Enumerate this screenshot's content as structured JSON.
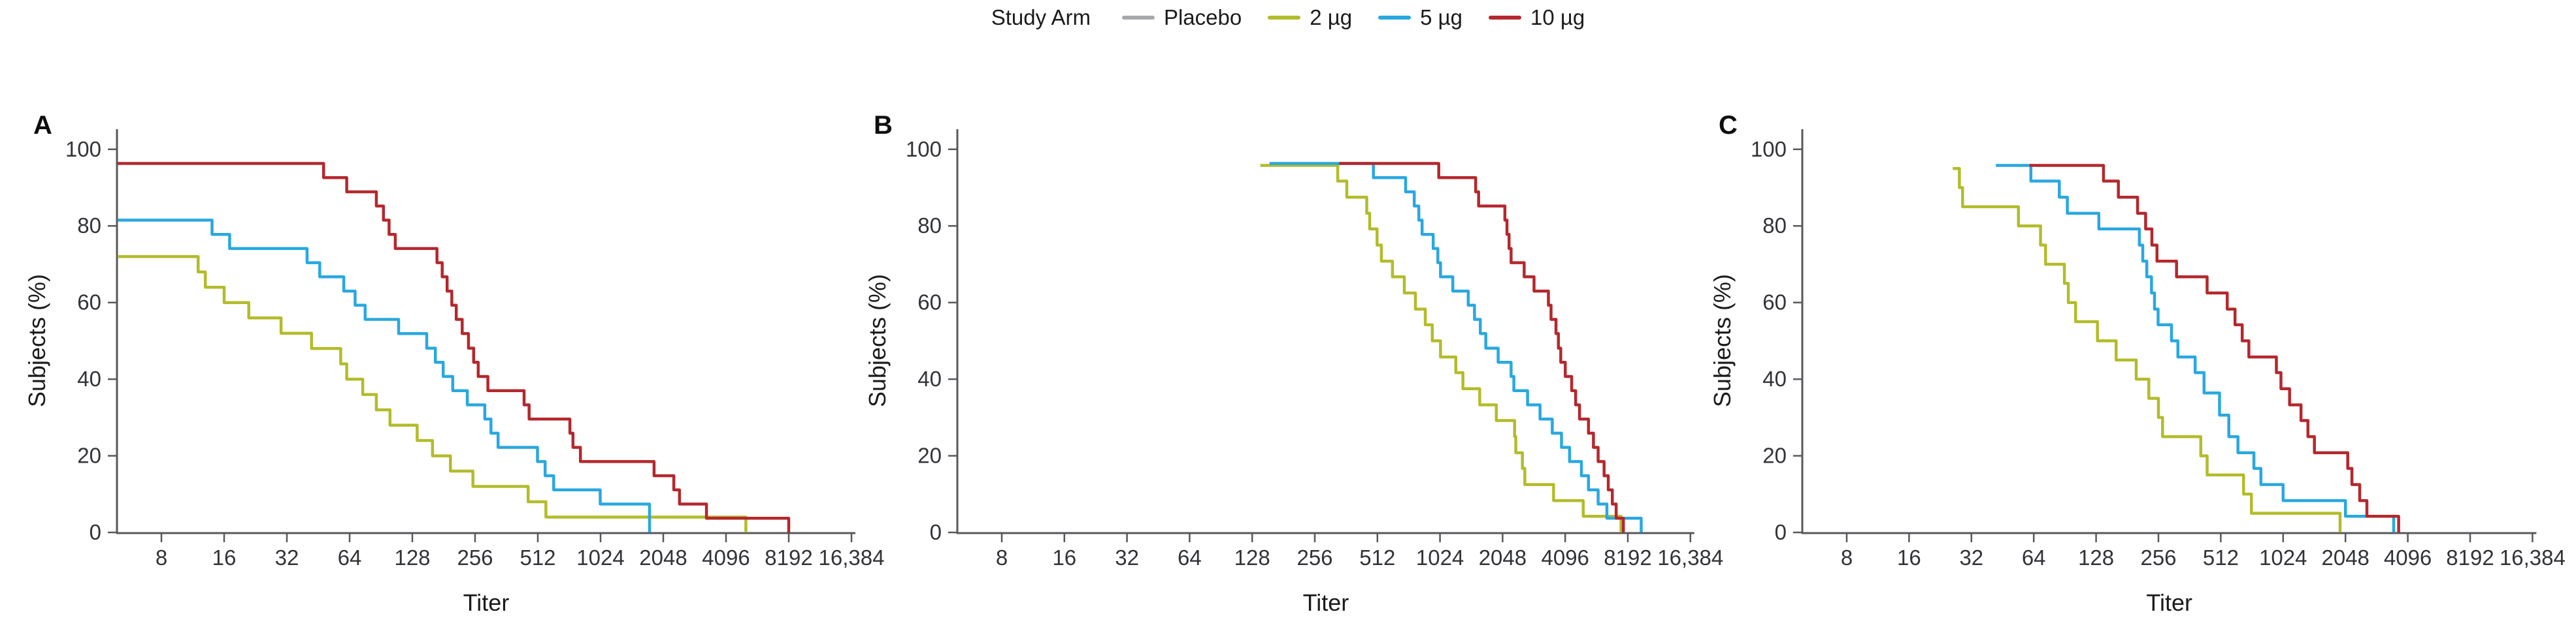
{
  "legend": {
    "title": "Study Arm",
    "items": [
      {
        "label": "Placebo",
        "color": "#a6a9ac"
      },
      {
        "label": "2 µg",
        "color": "#b3bc2a"
      },
      {
        "label": "5 µg",
        "color": "#29a8e0"
      },
      {
        "label": "10 µg",
        "color": "#b4282d"
      }
    ]
  },
  "axes": {
    "x_label": "Titer",
    "y_label": "Subjects (%)",
    "x_scale": "log2",
    "x_tick_labels": [
      "8",
      "16",
      "32",
      "64",
      "128",
      "256",
      "512",
      "1024",
      "2048",
      "4096",
      "8192",
      "16,384"
    ],
    "x_tick_values": [
      8,
      16,
      32,
      64,
      128,
      256,
      512,
      1024,
      2048,
      4096,
      8192,
      16384
    ],
    "y_tick_values": [
      100,
      80,
      60,
      40,
      20,
      0
    ],
    "ylim": [
      0,
      100
    ],
    "grid": false
  },
  "chart_data": [
    {
      "panel": "A",
      "type": "line",
      "style": "step-after",
      "x_scale": "log2",
      "xlabel": "Titer",
      "ylabel": "Subjects (%)",
      "ylim": [
        0,
        100
      ],
      "xlim": [
        5,
        16384
      ],
      "series": [
        {
          "name": "2 µg",
          "color": "#b3bc2a",
          "points": [
            [
              5,
              72
            ],
            [
              12,
              68
            ],
            [
              13,
              64
            ],
            [
              16,
              60
            ],
            [
              21,
              56
            ],
            [
              30,
              52
            ],
            [
              42,
              48
            ],
            [
              58,
              44
            ],
            [
              62,
              40
            ],
            [
              74,
              36
            ],
            [
              86,
              32
            ],
            [
              100,
              28
            ],
            [
              135,
              24
            ],
            [
              160,
              20
            ],
            [
              195,
              16
            ],
            [
              250,
              12
            ],
            [
              460,
              8
            ],
            [
              560,
              4
            ],
            [
              5100,
              0
            ]
          ]
        },
        {
          "name": "5 µg",
          "color": "#29a8e0",
          "points": [
            [
              5,
              81.5
            ],
            [
              14,
              77.8
            ],
            [
              17,
              74.1
            ],
            [
              40,
              70.4
            ],
            [
              46,
              66.7
            ],
            [
              60,
              63
            ],
            [
              68,
              59.3
            ],
            [
              76,
              55.6
            ],
            [
              110,
              51.9
            ],
            [
              150,
              48.1
            ],
            [
              165,
              44.4
            ],
            [
              180,
              40.7
            ],
            [
              200,
              37
            ],
            [
              235,
              33.3
            ],
            [
              285,
              29.6
            ],
            [
              305,
              25.9
            ],
            [
              330,
              22.2
            ],
            [
              510,
              18.5
            ],
            [
              555,
              14.8
            ],
            [
              610,
              11.1
            ],
            [
              1020,
              7.4
            ],
            [
              1760,
              0
            ]
          ]
        },
        {
          "name": "10 µg",
          "color": "#b4282d",
          "points": [
            [
              5,
              96.3
            ],
            [
              48,
              92.6
            ],
            [
              62,
              88.9
            ],
            [
              86,
              85.2
            ],
            [
              93,
              81.5
            ],
            [
              99,
              77.8
            ],
            [
              106,
              74.1
            ],
            [
              168,
              70.4
            ],
            [
              178,
              66.7
            ],
            [
              188,
              63
            ],
            [
              198,
              59.3
            ],
            [
              208,
              55.6
            ],
            [
              222,
              51.9
            ],
            [
              238,
              48.1
            ],
            [
              252,
              44.4
            ],
            [
              265,
              40.7
            ],
            [
              295,
              37
            ],
            [
              440,
              33.3
            ],
            [
              465,
              29.6
            ],
            [
              730,
              25.9
            ],
            [
              755,
              22.2
            ],
            [
              820,
              18.5
            ],
            [
              1850,
              14.8
            ],
            [
              2300,
              11.1
            ],
            [
              2450,
              7.4
            ],
            [
              3300,
              3.7
            ],
            [
              8192,
              0
            ]
          ]
        }
      ]
    },
    {
      "panel": "B",
      "type": "line",
      "style": "step-after",
      "x_scale": "log2",
      "xlabel": "Titer",
      "ylabel": "Subjects (%)",
      "ylim": [
        0,
        100
      ],
      "xlim": [
        5,
        16384
      ],
      "series": [
        {
          "name": "2 µg",
          "color": "#b3bc2a",
          "points": [
            [
              140,
              95.8
            ],
            [
              330,
              91.7
            ],
            [
              365,
              87.5
            ],
            [
              455,
              83.3
            ],
            [
              470,
              79.2
            ],
            [
              510,
              75
            ],
            [
              535,
              70.8
            ],
            [
              605,
              66.7
            ],
            [
              690,
              62.5
            ],
            [
              780,
              58.3
            ],
            [
              870,
              54.2
            ],
            [
              940,
              50
            ],
            [
              1030,
              45.8
            ],
            [
              1220,
              41.7
            ],
            [
              1320,
              37.5
            ],
            [
              1590,
              33.3
            ],
            [
              1910,
              29.2
            ],
            [
              2340,
              25
            ],
            [
              2370,
              20.8
            ],
            [
              2550,
              16.7
            ],
            [
              2620,
              12.5
            ],
            [
              3600,
              8.3
            ],
            [
              5000,
              4.2
            ],
            [
              7600,
              0
            ]
          ]
        },
        {
          "name": "5 µg",
          "color": "#29a8e0",
          "points": [
            [
              155,
              96.3
            ],
            [
              490,
              92.6
            ],
            [
              700,
              88.9
            ],
            [
              770,
              85.2
            ],
            [
              810,
              81.5
            ],
            [
              840,
              77.8
            ],
            [
              950,
              74.1
            ],
            [
              1000,
              70.4
            ],
            [
              1030,
              66.7
            ],
            [
              1180,
              63
            ],
            [
              1400,
              59.3
            ],
            [
              1500,
              55.6
            ],
            [
              1600,
              51.9
            ],
            [
              1700,
              48.1
            ],
            [
              1950,
              44.4
            ],
            [
              2250,
              40.7
            ],
            [
              2320,
              37
            ],
            [
              2700,
              33.3
            ],
            [
              3100,
              29.6
            ],
            [
              3550,
              25.9
            ],
            [
              3930,
              22.2
            ],
            [
              4300,
              18.5
            ],
            [
              4900,
              14.8
            ],
            [
              5300,
              11.1
            ],
            [
              5900,
              7.4
            ],
            [
              6500,
              3.7
            ],
            [
              9500,
              0
            ]
          ]
        },
        {
          "name": "10 µg",
          "color": "#b4282d",
          "points": [
            [
              335,
              96.3
            ],
            [
              1010,
              92.6
            ],
            [
              1520,
              88.9
            ],
            [
              1570,
              85.2
            ],
            [
              2100,
              81.5
            ],
            [
              2150,
              77.8
            ],
            [
              2200,
              74.1
            ],
            [
              2250,
              70.4
            ],
            [
              2600,
              66.7
            ],
            [
              2900,
              63
            ],
            [
              3400,
              59.3
            ],
            [
              3500,
              55.6
            ],
            [
              3700,
              51.9
            ],
            [
              3800,
              48.1
            ],
            [
              3900,
              44.4
            ],
            [
              4100,
              40.7
            ],
            [
              4400,
              37
            ],
            [
              4600,
              33.3
            ],
            [
              4800,
              29.6
            ],
            [
              5300,
              25.9
            ],
            [
              5600,
              22.2
            ],
            [
              5900,
              18.5
            ],
            [
              6300,
              14.8
            ],
            [
              6600,
              11.1
            ],
            [
              6900,
              7.4
            ],
            [
              7200,
              3.7
            ],
            [
              7800,
              0
            ]
          ]
        }
      ]
    },
    {
      "panel": "C",
      "type": "line",
      "style": "step-after",
      "x_scale": "log2",
      "xlabel": "Titer",
      "ylabel": "Subjects (%)",
      "ylim": [
        0,
        100
      ],
      "xlim": [
        5,
        16384
      ],
      "series": [
        {
          "name": "2 µg",
          "color": "#b3bc2a",
          "points": [
            [
              26,
              95
            ],
            [
              28,
              90
            ],
            [
              29,
              85
            ],
            [
              54,
              80
            ],
            [
              69,
              75
            ],
            [
              73,
              70
            ],
            [
              90,
              65
            ],
            [
              94,
              60
            ],
            [
              102,
              55
            ],
            [
              130,
              50
            ],
            [
              160,
              45
            ],
            [
              200,
              40
            ],
            [
              230,
              35
            ],
            [
              256,
              30
            ],
            [
              268,
              25
            ],
            [
              410,
              20
            ],
            [
              440,
              15
            ],
            [
              660,
              10
            ],
            [
              720,
              5
            ],
            [
              1930,
              0
            ]
          ]
        },
        {
          "name": "5 µg",
          "color": "#29a8e0",
          "points": [
            [
              42,
              95.8
            ],
            [
              62,
              91.7
            ],
            [
              85,
              87.5
            ],
            [
              93,
              83.3
            ],
            [
              132,
              79.2
            ],
            [
              207,
              75
            ],
            [
              215,
              70.8
            ],
            [
              225,
              66.7
            ],
            [
              237,
              62.5
            ],
            [
              245,
              58.3
            ],
            [
              255,
              54.2
            ],
            [
              296,
              50
            ],
            [
              318,
              45.8
            ],
            [
              385,
              41.7
            ],
            [
              425,
              36.4
            ],
            [
              505,
              30.6
            ],
            [
              560,
              25
            ],
            [
              620,
              20.8
            ],
            [
              740,
              16.7
            ],
            [
              800,
              12.5
            ],
            [
              1024,
              8.3
            ],
            [
              2048,
              4.2
            ],
            [
              3500,
              0
            ]
          ]
        },
        {
          "name": "10 µg",
          "color": "#b4282d",
          "points": [
            [
              61,
              95.8
            ],
            [
              139,
              91.7
            ],
            [
              164,
              87.5
            ],
            [
              203,
              83.3
            ],
            [
              222,
              79.2
            ],
            [
              238,
              75
            ],
            [
              252,
              70.8
            ],
            [
              313,
              66.7
            ],
            [
              440,
              62.5
            ],
            [
              550,
              58.3
            ],
            [
              600,
              54.2
            ],
            [
              650,
              50
            ],
            [
              700,
              45.8
            ],
            [
              950,
              41.7
            ],
            [
              1000,
              37.5
            ],
            [
              1100,
              33.3
            ],
            [
              1250,
              29.2
            ],
            [
              1350,
              25
            ],
            [
              1450,
              20.8
            ],
            [
              2100,
              16.7
            ],
            [
              2200,
              12.5
            ],
            [
              2400,
              8.3
            ],
            [
              2600,
              4.2
            ],
            [
              3700,
              0
            ]
          ]
        }
      ]
    }
  ]
}
